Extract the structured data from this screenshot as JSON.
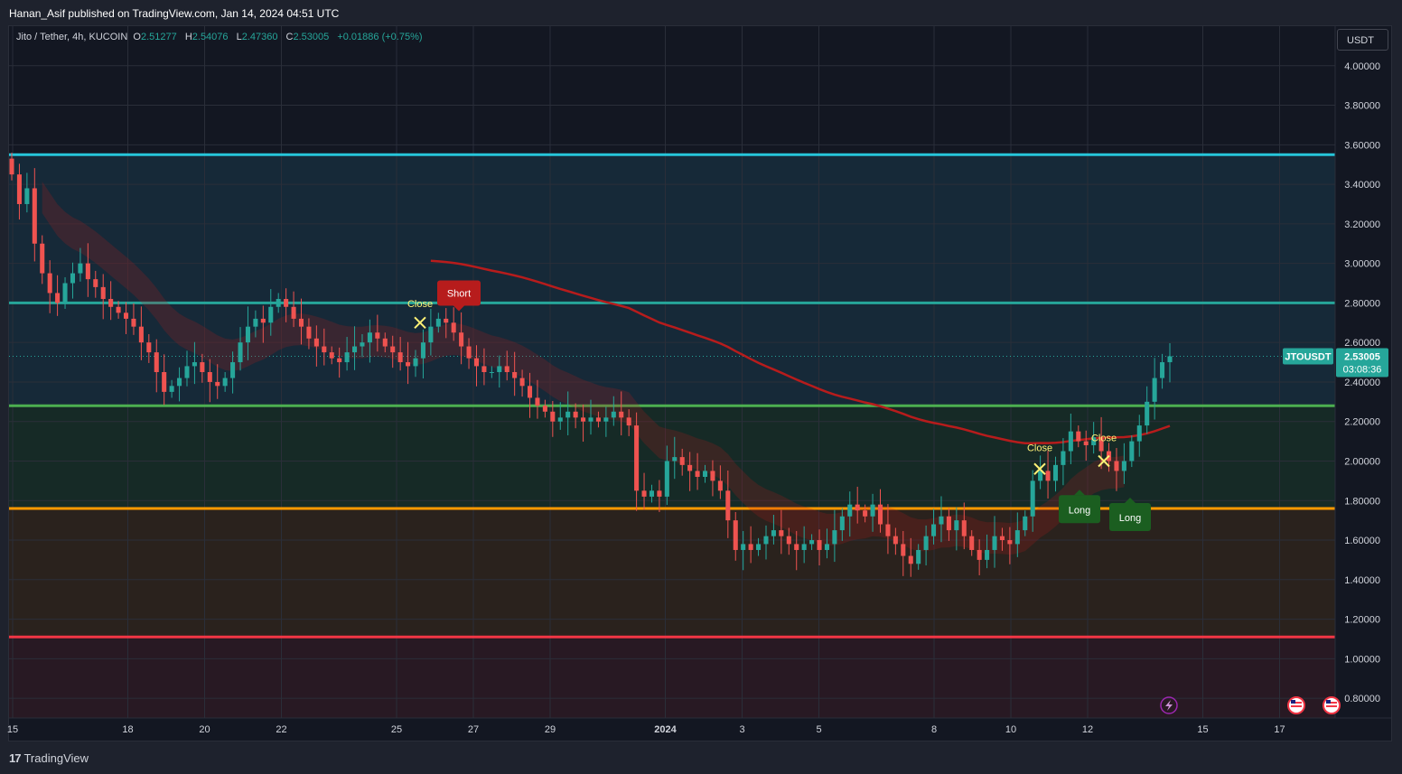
{
  "header": {
    "published": "Hanan_Asif published on TradingView.com, Jan 14, 2024 04:51 UTC"
  },
  "legend": {
    "symbol": "Jito / Tether, 4h, KUCOIN",
    "o_label": "O",
    "o_value": "2.51277",
    "h_label": "H",
    "h_value": "2.54076",
    "l_label": "L",
    "l_value": "2.47360",
    "c_label": "C",
    "c_value": "2.53005",
    "change": "+0.01886 (+0.75%)"
  },
  "currency_button": "USDT",
  "price_tag": {
    "symbol": "JTOUSDT",
    "price": "2.53005",
    "countdown": "03:08:36"
  },
  "brand": {
    "logo": "17",
    "name": "TradingView"
  },
  "colors": {
    "up": "#26a69a",
    "down": "#ef5350",
    "level_top": "#26c6da",
    "level_2_80": "#26a69a",
    "level_2_28": "#4caf50",
    "level_1_76": "#ff9800",
    "level_1_11": "#f23645",
    "ma": "#b71c1c",
    "short_label": "#b71c1c",
    "long_label": "#1b5e20"
  },
  "chart_data": {
    "type": "candlestick",
    "ylim": [
      0.7,
      4.2
    ],
    "y_ticks": [
      "4.00000",
      "3.80000",
      "3.60000",
      "3.40000",
      "3.20000",
      "3.00000",
      "2.80000",
      "2.60000",
      "2.40000",
      "2.20000",
      "2.00000",
      "1.80000",
      "1.60000",
      "1.40000",
      "1.20000",
      "1.00000",
      "0.80000"
    ],
    "x_ticks": [
      {
        "label": "15",
        "day": 15
      },
      {
        "label": "18",
        "day": 18
      },
      {
        "label": "20",
        "day": 20
      },
      {
        "label": "22",
        "day": 22
      },
      {
        "label": "25",
        "day": 25
      },
      {
        "label": "27",
        "day": 27
      },
      {
        "label": "29",
        "day": 29
      },
      {
        "label": "2024",
        "day": 32
      },
      {
        "label": "3",
        "day": 34
      },
      {
        "label": "5",
        "day": 36
      },
      {
        "label": "8",
        "day": 39
      },
      {
        "label": "10",
        "day": 41
      },
      {
        "label": "12",
        "day": 43
      },
      {
        "label": "15",
        "day": 46
      },
      {
        "label": "17",
        "day": 48
      }
    ],
    "levels": [
      3.55,
      2.8,
      2.28,
      1.76,
      1.11
    ],
    "close_series": [
      3.45,
      3.3,
      3.38,
      3.1,
      2.95,
      2.85,
      2.8,
      2.9,
      2.95,
      3.0,
      2.92,
      2.88,
      2.82,
      2.78,
      2.75,
      2.72,
      2.68,
      2.6,
      2.55,
      2.45,
      2.35,
      2.38,
      2.42,
      2.48,
      2.5,
      2.45,
      2.4,
      2.38,
      2.42,
      2.5,
      2.6,
      2.68,
      2.72,
      2.7,
      2.78,
      2.82,
      2.78,
      2.72,
      2.68,
      2.62,
      2.58,
      2.55,
      2.52,
      2.5,
      2.55,
      2.58,
      2.6,
      2.65,
      2.62,
      2.58,
      2.55,
      2.5,
      2.48,
      2.52,
      2.6,
      2.68,
      2.72,
      2.7,
      2.65,
      2.58,
      2.52,
      2.48,
      2.45,
      2.45,
      2.48,
      2.45,
      2.42,
      2.38,
      2.32,
      2.28,
      2.25,
      2.2,
      2.22,
      2.25,
      2.22,
      2.2,
      2.22,
      2.2,
      2.22,
      2.25,
      2.22,
      2.18,
      1.85,
      1.82,
      1.85,
      1.82,
      2.0,
      2.02,
      1.98,
      1.95,
      1.92,
      1.95,
      1.9,
      1.85,
      1.7,
      1.55,
      1.58,
      1.55,
      1.58,
      1.62,
      1.65,
      1.62,
      1.58,
      1.55,
      1.58,
      1.6,
      1.55,
      1.58,
      1.65,
      1.72,
      1.78,
      1.75,
      1.72,
      1.78,
      1.68,
      1.62,
      1.58,
      1.52,
      1.48,
      1.55,
      1.62,
      1.68,
      1.72,
      1.65,
      1.7,
      1.62,
      1.55,
      1.5,
      1.55,
      1.62,
      1.6,
      1.58,
      1.65,
      1.72,
      1.9,
      1.95,
      1.9,
      1.98,
      2.05,
      2.15,
      2.1,
      2.08,
      2.12,
      2.05,
      2.0,
      1.95,
      2.0,
      2.1,
      2.18,
      2.3,
      2.42,
      2.5,
      2.53
    ],
    "signals": [
      {
        "label": "Short",
        "type": "short"
      },
      {
        "label": "Close",
        "type": "close"
      },
      {
        "label": "Close",
        "type": "close"
      },
      {
        "label": "Close",
        "type": "close"
      },
      {
        "label": "Long",
        "type": "long"
      },
      {
        "label": "Long",
        "type": "long"
      }
    ]
  }
}
